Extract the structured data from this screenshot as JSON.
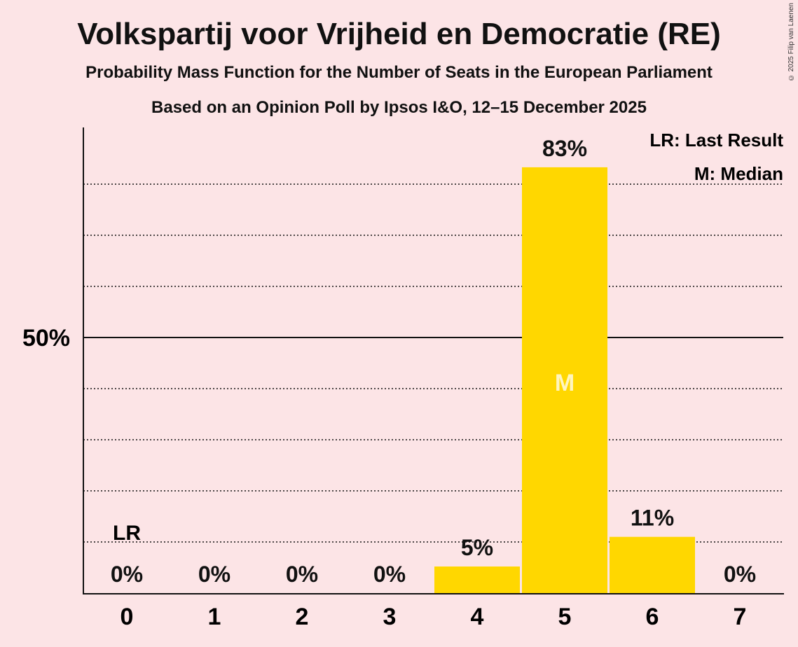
{
  "title": "Volkspartij voor Vrijheid en Democratie (RE)",
  "subtitle": "Probability Mass Function for the Number of Seats in the European Parliament",
  "subtitle2": "Based on an Opinion Poll by Ipsos I&O, 12–15 December 2025",
  "copyright": "© 2025 Filip van Laenen",
  "legend": {
    "lr": "LR: Last Result",
    "m": "M: Median"
  },
  "colors": {
    "bar": "#ffd700",
    "background": "#fce4e6"
  },
  "chart_data": {
    "type": "bar",
    "categories": [
      "0",
      "1",
      "2",
      "3",
      "4",
      "5",
      "6",
      "7"
    ],
    "values": [
      0,
      0,
      0,
      0,
      5.2,
      83.3,
      11,
      0
    ],
    "labels": [
      "0%",
      "0%",
      "0%",
      "0%",
      "5%",
      "83%",
      "11%",
      "0%"
    ],
    "ylim": [
      0,
      90
    ],
    "ytick_label": "50%",
    "ytick_value": 50,
    "grid_step": 10,
    "last_result": {
      "category": "0",
      "label": "LR"
    },
    "median": {
      "category": "5",
      "label": "M"
    },
    "legend_position": "top-right"
  }
}
